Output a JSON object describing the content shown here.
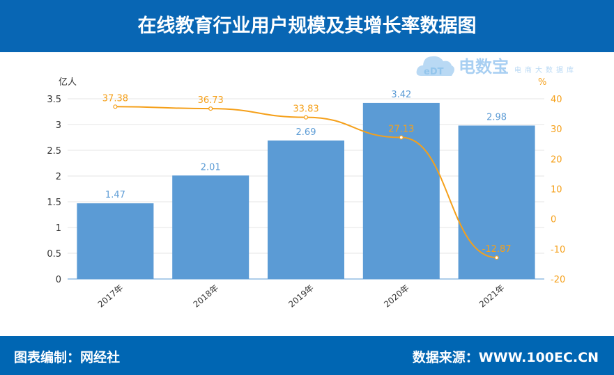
{
  "title": "在线教育行业用户规模及其增长率数据图",
  "footer": {
    "left": "图表编制：网经社",
    "right": "数据来源：WWW.100EC.CN"
  },
  "watermark": {
    "logo": "eDT",
    "name": "电数宝",
    "sub": "电商大数据库"
  },
  "colors": {
    "header": "#0866b4",
    "bar": "#5b9bd5",
    "line": "#f5a01a"
  },
  "chart_data": {
    "type": "bar+line",
    "categories": [
      "2017年",
      "2018年",
      "2019年",
      "2020年",
      "2021年"
    ],
    "series": [
      {
        "type": "bar",
        "axis": "left",
        "values": [
          1.47,
          2.01,
          2.69,
          3.42,
          2.98
        ]
      },
      {
        "type": "line",
        "axis": "right",
        "values": [
          37.38,
          36.73,
          33.83,
          27.13,
          -12.87
        ]
      }
    ],
    "ylabel_left": "亿人",
    "ylim_left": [
      0,
      3.5
    ],
    "yticks_left": [
      "0",
      "0.5",
      "1",
      "1.5",
      "2",
      "2.5",
      "3",
      "3.5"
    ],
    "ylabel_right": "%",
    "ylim_right": [
      -20,
      40
    ],
    "yticks_right": [
      "-20",
      "-10",
      "0",
      "10",
      "20",
      "30",
      "40"
    ],
    "grid": true
  }
}
